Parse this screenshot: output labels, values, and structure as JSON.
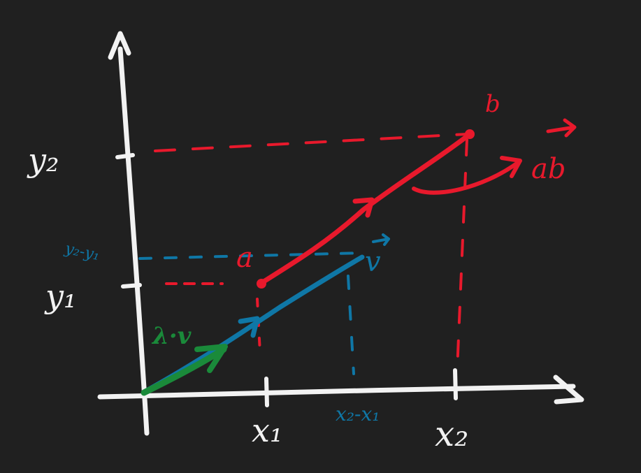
{
  "colors": {
    "background": "#202020",
    "axes": "#f2f2f2",
    "red": "#e8192c",
    "blue": "#0f77a6",
    "green": "#1a8a3a"
  },
  "labels": {
    "y_axis_high": "y₂",
    "y_axis_low": "y₁",
    "y_diff": "y₂-y₁",
    "x_axis_low": "x₁",
    "x_axis_high": "x₂",
    "x_diff": "x₂-x₁",
    "point_a": "a",
    "point_b": "b",
    "vector_ab": "ab",
    "vector_v": "v",
    "scaled_vector": "λ·v"
  }
}
